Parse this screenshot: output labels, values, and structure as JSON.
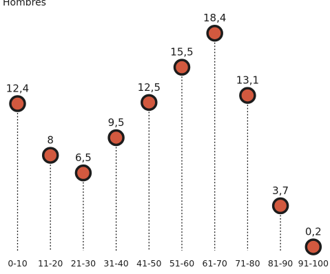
{
  "chart_data": {
    "type": "scatter",
    "title": "Hombres",
    "xlabel": "",
    "ylabel": "",
    "categories": [
      "0-10",
      "11-20",
      "21-30",
      "31-40",
      "41-50",
      "51-60",
      "61-70",
      "71-80",
      "81-90",
      "91-100"
    ],
    "values": [
      12.4,
      8,
      6.5,
      9.5,
      12.5,
      15.5,
      18.4,
      13.1,
      3.7,
      0.2
    ],
    "value_labels": [
      "12,4",
      "8",
      "6,5",
      "9,5",
      "12,5",
      "15,5",
      "18,4",
      "13,1",
      "3,7",
      "0,2"
    ],
    "ylim": [
      0,
      19
    ],
    "grid": false,
    "legend": "none",
    "colors": {
      "marker_fill": "#d2593f",
      "marker_stroke": "#1c1c1c",
      "stem": "#1c1c1c",
      "text": "#1a1a1a"
    }
  }
}
